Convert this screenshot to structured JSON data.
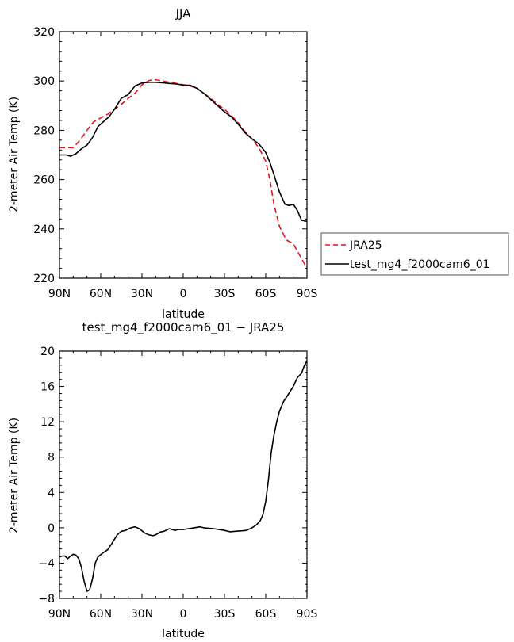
{
  "chart_data": [
    {
      "type": "line",
      "title": "JJA",
      "xlabel": "latitude",
      "ylabel": "2-meter Air Temp (K)",
      "xlim": [
        90,
        -90
      ],
      "ylim": [
        220,
        320
      ],
      "x_ticks": [
        {
          "value": 90,
          "label": "90N"
        },
        {
          "value": 60,
          "label": "60N"
        },
        {
          "value": 30,
          "label": "30N"
        },
        {
          "value": 0,
          "label": "0"
        },
        {
          "value": -30,
          "label": "30S"
        },
        {
          "value": -60,
          "label": "60S"
        },
        {
          "value": -90,
          "label": "90S"
        }
      ],
      "y_ticks": [
        220,
        240,
        260,
        280,
        300,
        320
      ],
      "legend": "right, outside plot",
      "series": [
        {
          "name": "JRA25",
          "color": "#e8141c",
          "dash": "dashed",
          "x": [
            90,
            85,
            80,
            75,
            70,
            65,
            60,
            55,
            50,
            45,
            40,
            35,
            30,
            25,
            20,
            15,
            10,
            5,
            0,
            -5,
            -10,
            -15,
            -20,
            -25,
            -30,
            -35,
            -40,
            -45,
            -50,
            -55,
            -60,
            -63,
            -66,
            -70,
            -75,
            -80,
            -85,
            -90
          ],
          "values": [
            273,
            273,
            273,
            276,
            280,
            283.5,
            285,
            286.5,
            288.5,
            290.5,
            293,
            295,
            298.5,
            300.2,
            300.5,
            300,
            299.5,
            299,
            298.5,
            298,
            297,
            295,
            293,
            290.5,
            288.5,
            286,
            283,
            279.5,
            276.5,
            273,
            267.5,
            260,
            250,
            241,
            235.5,
            234,
            229,
            224
          ]
        },
        {
          "name": "test_mg4_f2000cam6_01",
          "color": "#000000",
          "dash": "solid",
          "x": [
            90,
            85,
            82,
            78,
            74,
            70,
            66,
            62,
            58,
            54,
            50,
            45,
            40,
            35,
            30,
            25,
            20,
            15,
            10,
            5,
            0,
            -5,
            -10,
            -15,
            -20,
            -25,
            -30,
            -35,
            -40,
            -45,
            -50,
            -55,
            -60,
            -63,
            -66,
            -70,
            -74,
            -77,
            -80,
            -83,
            -86,
            -90
          ],
          "values": [
            270,
            270,
            269.5,
            270.5,
            272.5,
            274,
            277,
            281.5,
            283.5,
            285.5,
            288.5,
            293,
            294.5,
            298,
            299.2,
            299.5,
            299.5,
            299.3,
            299,
            298.8,
            298.3,
            298.3,
            297,
            295,
            292.5,
            290,
            287.5,
            285.5,
            282.5,
            279,
            276.5,
            274.5,
            271,
            267,
            262,
            255,
            250,
            249.5,
            250,
            247.5,
            243.5,
            243
          ]
        }
      ]
    },
    {
      "type": "line",
      "title": "test_mg4_f2000cam6_01 − JRA25",
      "xlabel": "latitude",
      "ylabel": "2-meter Air Temp (K)",
      "xlim": [
        90,
        -90
      ],
      "ylim": [
        -8,
        20
      ],
      "x_ticks": [
        {
          "value": 90,
          "label": "90N"
        },
        {
          "value": 60,
          "label": "60N"
        },
        {
          "value": 30,
          "label": "30N"
        },
        {
          "value": 0,
          "label": "0"
        },
        {
          "value": -30,
          "label": "30S"
        },
        {
          "value": -60,
          "label": "60S"
        },
        {
          "value": -90,
          "label": "90S"
        }
      ],
      "y_ticks": [
        -8,
        -4,
        0,
        4,
        8,
        12,
        16,
        20
      ],
      "series": [
        {
          "color": "#000000",
          "dash": "solid",
          "x": [
            90,
            88,
            86,
            84,
            82,
            80,
            78,
            76,
            74,
            72,
            70,
            68,
            66,
            64,
            62,
            58,
            55,
            52,
            48,
            45,
            42,
            38,
            35,
            32,
            28,
            25,
            22,
            20,
            17,
            14,
            10,
            6,
            4,
            0,
            -4,
            -8,
            -12,
            -15,
            -18,
            -22,
            -26,
            -30,
            -34,
            -38,
            -42,
            -46,
            -50,
            -53,
            -56,
            -58,
            -60,
            -62,
            -64,
            -66,
            -68,
            -70,
            -73,
            -76,
            -80,
            -83,
            -86,
            -88,
            -90
          ],
          "values": [
            -3.3,
            -3.2,
            -3.2,
            -3.5,
            -3.2,
            -3.0,
            -3.1,
            -3.5,
            -4.5,
            -6.1,
            -7.2,
            -7.0,
            -5.8,
            -4.0,
            -3.3,
            -2.8,
            -2.5,
            -1.8,
            -0.8,
            -0.4,
            -0.3,
            0,
            0.1,
            -0.1,
            -0.6,
            -0.8,
            -0.9,
            -0.8,
            -0.5,
            -0.4,
            -0.1,
            -0.3,
            -0.2,
            -0.2,
            -0.1,
            0,
            0.1,
            0,
            -0.05,
            -0.1,
            -0.2,
            -0.3,
            -0.45,
            -0.4,
            -0.35,
            -0.3,
            0,
            0.3,
            0.8,
            1.5,
            3.0,
            5.5,
            8.5,
            10.5,
            12.0,
            13.2,
            14.3,
            15.0,
            16.0,
            17.0,
            17.5,
            18.3,
            18.9
          ]
        }
      ]
    }
  ]
}
